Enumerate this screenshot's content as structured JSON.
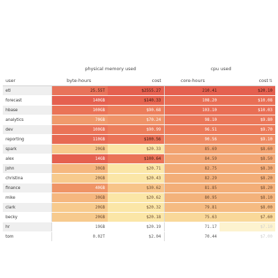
{
  "groups": {
    "memory": "physical memory used",
    "cpu": "cpu used"
  },
  "headers": {
    "user": "user",
    "byte_hours": "byte-hours",
    "mem_cost": "cost",
    "core_hours": "core-hours",
    "cpu_cost": "cost"
  },
  "sort_icon": "sort-arrows-icon",
  "rows": [
    {
      "user": "etl",
      "byte_hours": "25.55T",
      "mem_cost": "$2555.27",
      "core_hours": "210.41",
      "cpu_cost": "$20.10",
      "c_bh": "#e8735a",
      "c_mc": "#e5604f",
      "c_ch": "#e5604f",
      "c_cc": "#e5604f",
      "t_bh": "#3a1a12",
      "t_mc": "#3a1a12",
      "t_ch": "#3a1a12",
      "t_cc": "#3a1a12"
    },
    {
      "user": "forecast",
      "byte_hours": "140GB",
      "mem_cost": "$140.33",
      "core_hours": "108.20",
      "cpu_cost": "$10.08",
      "c_bh": "#e5604f",
      "c_mc": "#e6654f",
      "c_ch": "#e96f55",
      "c_cc": "#e96f55",
      "t_bh": "#ffffff",
      "t_mc": "#3a1a12",
      "t_ch": "#ffffff",
      "t_cc": "#ffffff"
    },
    {
      "user": "hbase",
      "byte_hours": "100GB",
      "mem_cost": "$90.68",
      "core_hours": "103.10",
      "cpu_cost": "$10.03",
      "c_bh": "#ea7357",
      "c_mc": "#ec7e5b",
      "c_ch": "#e96f55",
      "c_cc": "#e96f55",
      "t_bh": "#ffffff",
      "t_mc": "#ffffff",
      "t_ch": "#ffffff",
      "t_cc": "#ffffff"
    },
    {
      "user": "analytics",
      "byte_hours": "70GB",
      "mem_cost": "$70.24",
      "core_hours": "98.10",
      "cpu_cost": "$9.80",
      "c_bh": "#f09a6c",
      "c_mc": "#ef9368",
      "c_ch": "#eb785a",
      "c_cc": "#eb785a",
      "t_bh": "#ffffff",
      "t_mc": "#ffffff",
      "t_ch": "#ffffff",
      "t_cc": "#ffffff"
    },
    {
      "user": "dev",
      "byte_hours": "100GB",
      "mem_cost": "$90.99",
      "core_hours": "96.51",
      "cpu_cost": "$9.70",
      "c_bh": "#ea7357",
      "c_mc": "#ec7e5b",
      "c_ch": "#ec7b5a",
      "c_cc": "#ec7b5a",
      "t_bh": "#ffffff",
      "t_mc": "#ffffff",
      "t_ch": "#ffffff",
      "t_cc": "#ffffff"
    },
    {
      "user": "reporting",
      "byte_hours": "110GB",
      "mem_cost": "$100.56",
      "core_hours": "90.56",
      "cpu_cost": "$9.10",
      "c_bh": "#e76a53",
      "c_mc": "#ea7357",
      "c_ch": "#ee8a62",
      "c_cc": "#ee8a62",
      "t_bh": "#ffffff",
      "t_mc": "#3a1a12",
      "t_ch": "#ffffff",
      "t_cc": "#ffffff"
    },
    {
      "user": "spark",
      "byte_hours": "20GB",
      "mem_cost": "$20.33",
      "core_hours": "85.69",
      "cpu_cost": "$8.60",
      "c_bh": "#f7ca8d",
      "c_mc": "#fbe6a7",
      "c_ch": "#f2a371",
      "c_cc": "#f2a371",
      "t_bh": "#6a4a30",
      "t_mc": "#6a4a30",
      "t_ch": "#6a4a30",
      "t_cc": "#6a4a30"
    },
    {
      "user": "alex",
      "byte_hours": "14GB",
      "mem_cost": "$100.64",
      "core_hours": "84.59",
      "cpu_cost": "$8.50",
      "c_bh": "#e5604f",
      "c_mc": "#ea7357",
      "c_ch": "#f2a674",
      "c_cc": "#f2a674",
      "t_bh": "#ffffff",
      "t_mc": "#3a1a12",
      "t_ch": "#6a4a30",
      "t_cc": "#6a4a30"
    },
    {
      "user": "john",
      "byte_hours": "30GB",
      "mem_cost": "$20.71",
      "core_hours": "82.75",
      "cpu_cost": "$8.30",
      "c_bh": "#f5b77f",
      "c_mc": "#fbe6a7",
      "c_ch": "#f3ab77",
      "c_cc": "#f3ab77",
      "t_bh": "#6a4a30",
      "t_mc": "#6a4a30",
      "t_ch": "#6a4a30",
      "t_cc": "#6a4a30"
    },
    {
      "user": "christina",
      "byte_hours": "20GB",
      "mem_cost": "$20.43",
      "core_hours": "82.29",
      "cpu_cost": "$8.20",
      "c_bh": "#f7ca8d",
      "c_mc": "#fbe6a7",
      "c_ch": "#f3ae78",
      "c_cc": "#f3ae78",
      "t_bh": "#6a4a30",
      "t_mc": "#6a4a30",
      "t_ch": "#6a4a30",
      "t_cc": "#6a4a30"
    },
    {
      "user": "finance",
      "byte_hours": "40GB",
      "mem_cost": "$30.62",
      "core_hours": "81.85",
      "cpu_cost": "$8.20",
      "c_bh": "#ef9466",
      "c_mc": "#f7c489",
      "c_ch": "#f3ae78",
      "c_cc": "#f3ae78",
      "t_bh": "#ffffff",
      "t_mc": "#6a4a30",
      "t_ch": "#6a4a30",
      "t_cc": "#6a4a30"
    },
    {
      "user": "mike",
      "byte_hours": "30GB",
      "mem_cost": "$20.62",
      "core_hours": "80.95",
      "cpu_cost": "$8.10",
      "c_bh": "#f5b77f",
      "c_mc": "#fbe6a7",
      "c_ch": "#f3b27b",
      "c_cc": "#f3b27b",
      "t_bh": "#6a4a30",
      "t_mc": "#6a4a30",
      "t_ch": "#6a4a30",
      "t_cc": "#6a4a30"
    },
    {
      "user": "clark",
      "byte_hours": "20GB",
      "mem_cost": "$20.32",
      "core_hours": "79.81",
      "cpu_cost": "$8.00",
      "c_bh": "#f7ca8d",
      "c_mc": "#fbe6a7",
      "c_ch": "#f5bb82",
      "c_cc": "#f5bb82",
      "t_bh": "#6a4a30",
      "t_mc": "#6a4a30",
      "t_ch": "#6a4a30",
      "t_cc": "#6a4a30"
    },
    {
      "user": "becky",
      "byte_hours": "20GB",
      "mem_cost": "$20.18",
      "core_hours": "75.63",
      "cpu_cost": "$7.60",
      "c_bh": "#f7ca8d",
      "c_mc": "#fbe6a7",
      "c_ch": "#f9d899",
      "c_cc": "#f9d899",
      "t_bh": "#6a4a30",
      "t_mc": "#6a4a30",
      "t_ch": "#6a4a30",
      "t_cc": "#6a4a30"
    },
    {
      "user": "hr",
      "byte_hours": "19GB",
      "mem_cost": "$20.19",
      "core_hours": "71.17",
      "cpu_cost": "$7.10",
      "c_bh": "#ffffff",
      "c_mc": "#ffffff",
      "c_ch": "#ffffff",
      "c_cc": "#fdf3cf",
      "t_bh": "#555555",
      "t_mc": "#555555",
      "t_ch": "#555555",
      "t_cc": "#cccccc"
    },
    {
      "user": "tom",
      "byte_hours": "0.02T",
      "mem_cost": "$2.04",
      "core_hours": "70.44",
      "cpu_cost": "$7.00",
      "c_bh": "#ffffff",
      "c_mc": "#ffffff",
      "c_ch": "#ffffff",
      "c_cc": "#ffffff",
      "t_bh": "#555555",
      "t_mc": "#555555",
      "t_ch": "#555555",
      "t_cc": "#cccccc"
    }
  ]
}
